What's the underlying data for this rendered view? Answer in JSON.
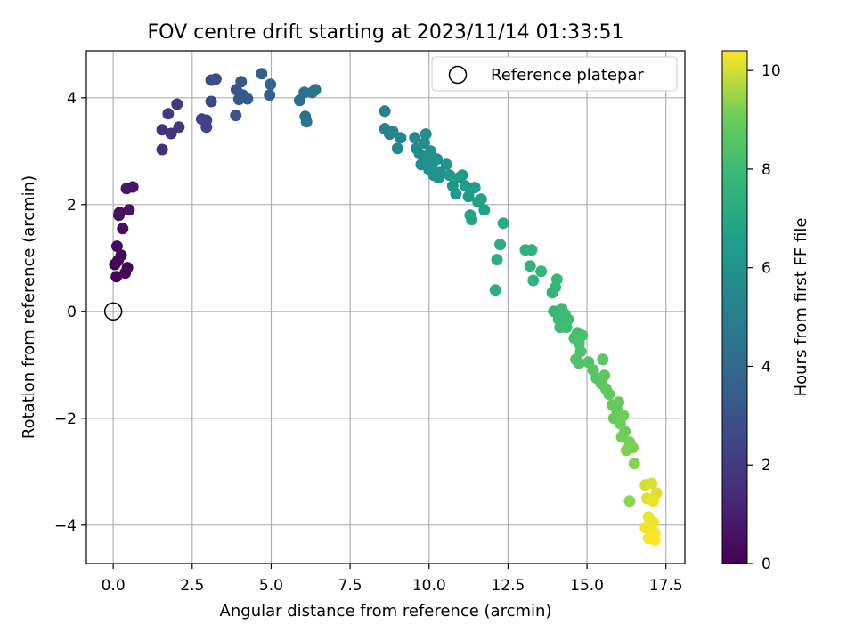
{
  "chart_data": {
    "type": "scatter",
    "title": "FOV centre drift starting at 2023/11/14 01:33:51",
    "xlabel": "Angular distance from reference (arcmin)",
    "ylabel": "Rotation from reference (arcmin)",
    "xlim": [
      -0.85,
      18.1
    ],
    "ylim": [
      -4.72,
      4.88
    ],
    "xticks": [
      0.0,
      2.5,
      5.0,
      7.5,
      10.0,
      12.5,
      15.0,
      17.5
    ],
    "xtick_labels": [
      "0.0",
      "2.5",
      "5.0",
      "7.5",
      "10.0",
      "12.5",
      "15.0",
      "17.5"
    ],
    "yticks": [
      -4,
      -2,
      0,
      2,
      4
    ],
    "ytick_labels": [
      "−4",
      "−2",
      "0",
      "2",
      "4"
    ],
    "grid": true,
    "legend": {
      "placement": "upper right",
      "entries": [
        {
          "label": "Reference platepar",
          "marker": "open-circle",
          "x": 0,
          "y": 0
        }
      ]
    },
    "colorbar": {
      "label": "Hours from first FF file",
      "colormap": "viridis",
      "range": [
        0,
        10.4
      ],
      "ticks": [
        0,
        2,
        4,
        6,
        8,
        10
      ],
      "tick_labels": [
        "0",
        "2",
        "4",
        "6",
        "8",
        "10"
      ]
    },
    "reference_point": {
      "x": 0,
      "y": 0
    },
    "point_series_note": "c = hours from first FF file",
    "points": [
      {
        "x": 0.05,
        "y": 0.88,
        "c": 0.05
      },
      {
        "x": 0.1,
        "y": 0.65,
        "c": 0.1
      },
      {
        "x": 0.38,
        "y": 0.72,
        "c": 0.15
      },
      {
        "x": 0.45,
        "y": 0.82,
        "c": 0.2
      },
      {
        "x": 0.15,
        "y": 0.95,
        "c": 0.25
      },
      {
        "x": 0.25,
        "y": 1.05,
        "c": 0.3
      },
      {
        "x": 0.12,
        "y": 1.22,
        "c": 0.35
      },
      {
        "x": 0.3,
        "y": 1.55,
        "c": 0.45
      },
      {
        "x": 0.18,
        "y": 1.8,
        "c": 0.5
      },
      {
        "x": 0.2,
        "y": 1.85,
        "c": 0.55
      },
      {
        "x": 0.5,
        "y": 1.9,
        "c": 0.6
      },
      {
        "x": 0.42,
        "y": 2.3,
        "c": 0.7
      },
      {
        "x": 0.62,
        "y": 2.33,
        "c": 0.75
      },
      {
        "x": 1.55,
        "y": 3.03,
        "c": 1.6
      },
      {
        "x": 1.55,
        "y": 3.4,
        "c": 1.65
      },
      {
        "x": 1.83,
        "y": 3.33,
        "c": 1.75
      },
      {
        "x": 2.08,
        "y": 3.45,
        "c": 1.85
      },
      {
        "x": 1.74,
        "y": 3.7,
        "c": 1.9
      },
      {
        "x": 2.02,
        "y": 3.88,
        "c": 2.0
      },
      {
        "x": 2.8,
        "y": 3.6,
        "c": 2.3
      },
      {
        "x": 2.95,
        "y": 3.45,
        "c": 2.35
      },
      {
        "x": 2.95,
        "y": 3.58,
        "c": 2.4
      },
      {
        "x": 3.1,
        "y": 3.93,
        "c": 2.55
      },
      {
        "x": 3.1,
        "y": 4.33,
        "c": 2.65
      },
      {
        "x": 3.25,
        "y": 4.35,
        "c": 2.75
      },
      {
        "x": 3.88,
        "y": 3.67,
        "c": 3.0
      },
      {
        "x": 3.9,
        "y": 4.15,
        "c": 3.05
      },
      {
        "x": 3.98,
        "y": 3.97,
        "c": 3.1
      },
      {
        "x": 4.05,
        "y": 4.3,
        "c": 3.2
      },
      {
        "x": 4.1,
        "y": 4.05,
        "c": 3.25
      },
      {
        "x": 4.25,
        "y": 3.98,
        "c": 3.3
      },
      {
        "x": 4.7,
        "y": 4.45,
        "c": 3.6
      },
      {
        "x": 4.95,
        "y": 4.05,
        "c": 3.7
      },
      {
        "x": 4.98,
        "y": 4.25,
        "c": 3.8
      },
      {
        "x": 5.9,
        "y": 3.95,
        "c": 4.2
      },
      {
        "x": 6.05,
        "y": 4.1,
        "c": 4.3
      },
      {
        "x": 6.08,
        "y": 3.65,
        "c": 4.35
      },
      {
        "x": 6.12,
        "y": 3.55,
        "c": 4.4
      },
      {
        "x": 6.3,
        "y": 4.1,
        "c": 4.45
      },
      {
        "x": 6.4,
        "y": 4.15,
        "c": 4.5
      },
      {
        "x": 8.6,
        "y": 3.75,
        "c": 5.1
      },
      {
        "x": 8.6,
        "y": 3.42,
        "c": 5.2
      },
      {
        "x": 8.75,
        "y": 3.32,
        "c": 5.25
      },
      {
        "x": 8.85,
        "y": 3.37,
        "c": 5.3
      },
      {
        "x": 9.0,
        "y": 3.05,
        "c": 5.4
      },
      {
        "x": 9.1,
        "y": 3.25,
        "c": 5.45
      },
      {
        "x": 9.55,
        "y": 3.25,
        "c": 5.6
      },
      {
        "x": 9.6,
        "y": 3.05,
        "c": 5.65
      },
      {
        "x": 9.7,
        "y": 2.95,
        "c": 5.7
      },
      {
        "x": 9.85,
        "y": 3.15,
        "c": 5.75
      },
      {
        "x": 9.9,
        "y": 3.32,
        "c": 5.8
      },
      {
        "x": 9.75,
        "y": 2.75,
        "c": 5.8
      },
      {
        "x": 9.95,
        "y": 2.85,
        "c": 5.85
      },
      {
        "x": 10.0,
        "y": 2.65,
        "c": 5.9
      },
      {
        "x": 10.05,
        "y": 3.0,
        "c": 5.9
      },
      {
        "x": 10.1,
        "y": 2.75,
        "c": 5.95
      },
      {
        "x": 10.15,
        "y": 2.55,
        "c": 6.0
      },
      {
        "x": 10.25,
        "y": 2.85,
        "c": 6.0
      },
      {
        "x": 10.35,
        "y": 2.6,
        "c": 6.05
      },
      {
        "x": 10.3,
        "y": 2.5,
        "c": 6.1
      },
      {
        "x": 10.55,
        "y": 2.75,
        "c": 6.15
      },
      {
        "x": 10.65,
        "y": 2.55,
        "c": 6.2
      },
      {
        "x": 10.75,
        "y": 2.35,
        "c": 6.25
      },
      {
        "x": 10.85,
        "y": 2.2,
        "c": 6.3
      },
      {
        "x": 10.95,
        "y": 2.5,
        "c": 6.35
      },
      {
        "x": 11.05,
        "y": 2.55,
        "c": 6.35
      },
      {
        "x": 11.15,
        "y": 2.35,
        "c": 6.4
      },
      {
        "x": 11.25,
        "y": 2.15,
        "c": 6.45
      },
      {
        "x": 11.3,
        "y": 2.28,
        "c": 6.5
      },
      {
        "x": 11.45,
        "y": 2.32,
        "c": 6.55
      },
      {
        "x": 11.55,
        "y": 2.05,
        "c": 6.6
      },
      {
        "x": 11.65,
        "y": 2.1,
        "c": 6.65
      },
      {
        "x": 11.75,
        "y": 1.9,
        "c": 6.7
      },
      {
        "x": 11.3,
        "y": 1.8,
        "c": 6.75
      },
      {
        "x": 11.35,
        "y": 1.72,
        "c": 6.8
      },
      {
        "x": 12.35,
        "y": 1.65,
        "c": 7.2
      },
      {
        "x": 12.25,
        "y": 1.25,
        "c": 7.25
      },
      {
        "x": 12.15,
        "y": 0.97,
        "c": 7.3
      },
      {
        "x": 12.1,
        "y": 0.4,
        "c": 7.35
      },
      {
        "x": 13.05,
        "y": 1.15,
        "c": 7.45
      },
      {
        "x": 13.25,
        "y": 1.15,
        "c": 7.5
      },
      {
        "x": 13.2,
        "y": 0.85,
        "c": 7.55
      },
      {
        "x": 13.3,
        "y": 0.58,
        "c": 7.6
      },
      {
        "x": 13.55,
        "y": 0.75,
        "c": 7.65
      },
      {
        "x": 13.9,
        "y": 0.35,
        "c": 7.7
      },
      {
        "x": 14.0,
        "y": 0.45,
        "c": 7.75
      },
      {
        "x": 14.05,
        "y": 0.6,
        "c": 7.8
      },
      {
        "x": 13.95,
        "y": 0.0,
        "c": 7.85
      },
      {
        "x": 14.1,
        "y": -0.15,
        "c": 7.9
      },
      {
        "x": 14.2,
        "y": 0.05,
        "c": 7.95
      },
      {
        "x": 14.3,
        "y": -0.05,
        "c": 8.0
      },
      {
        "x": 14.15,
        "y": -0.3,
        "c": 8.0
      },
      {
        "x": 14.4,
        "y": -0.15,
        "c": 8.05
      },
      {
        "x": 14.35,
        "y": -0.3,
        "c": 8.1
      },
      {
        "x": 14.6,
        "y": -0.5,
        "c": 8.15
      },
      {
        "x": 14.7,
        "y": -0.4,
        "c": 8.2
      },
      {
        "x": 14.85,
        "y": -0.45,
        "c": 8.25
      },
      {
        "x": 14.75,
        "y": -0.6,
        "c": 8.3
      },
      {
        "x": 14.8,
        "y": -0.75,
        "c": 8.35
      },
      {
        "x": 14.65,
        "y": -0.9,
        "c": 8.4
      },
      {
        "x": 14.75,
        "y": -0.97,
        "c": 8.45
      },
      {
        "x": 15.05,
        "y": -0.95,
        "c": 8.5
      },
      {
        "x": 15.2,
        "y": -1.1,
        "c": 8.55
      },
      {
        "x": 15.3,
        "y": -1.25,
        "c": 8.6
      },
      {
        "x": 15.45,
        "y": -1.35,
        "c": 8.65
      },
      {
        "x": 15.55,
        "y": -1.2,
        "c": 8.7
      },
      {
        "x": 15.5,
        "y": -0.9,
        "c": 8.7
      },
      {
        "x": 15.6,
        "y": -1.45,
        "c": 8.75
      },
      {
        "x": 15.7,
        "y": -1.55,
        "c": 8.8
      },
      {
        "x": 15.8,
        "y": -1.75,
        "c": 8.85
      },
      {
        "x": 15.95,
        "y": -1.85,
        "c": 8.9
      },
      {
        "x": 16.0,
        "y": -1.7,
        "c": 8.9
      },
      {
        "x": 15.85,
        "y": -2.0,
        "c": 8.95
      },
      {
        "x": 16.05,
        "y": -2.1,
        "c": 9.0
      },
      {
        "x": 16.15,
        "y": -1.95,
        "c": 9.0
      },
      {
        "x": 16.2,
        "y": -2.25,
        "c": 9.05
      },
      {
        "x": 16.1,
        "y": -2.35,
        "c": 9.1
      },
      {
        "x": 16.35,
        "y": -2.45,
        "c": 9.15
      },
      {
        "x": 16.45,
        "y": -2.55,
        "c": 9.2
      },
      {
        "x": 16.25,
        "y": -2.6,
        "c": 9.25
      },
      {
        "x": 16.5,
        "y": -2.85,
        "c": 9.3
      },
      {
        "x": 16.35,
        "y": -3.55,
        "c": 9.4
      },
      {
        "x": 16.85,
        "y": -3.25,
        "c": 10.0
      },
      {
        "x": 17.05,
        "y": -3.22,
        "c": 10.05
      },
      {
        "x": 17.2,
        "y": -3.4,
        "c": 10.1
      },
      {
        "x": 16.9,
        "y": -3.5,
        "c": 10.15
      },
      {
        "x": 17.1,
        "y": -3.55,
        "c": 10.2
      },
      {
        "x": 16.95,
        "y": -3.85,
        "c": 10.25
      },
      {
        "x": 17.1,
        "y": -3.95,
        "c": 10.25
      },
      {
        "x": 16.85,
        "y": -4.05,
        "c": 10.3
      },
      {
        "x": 17.0,
        "y": -4.1,
        "c": 10.3
      },
      {
        "x": 17.15,
        "y": -4.15,
        "c": 10.35
      },
      {
        "x": 16.95,
        "y": -4.25,
        "c": 10.35
      },
      {
        "x": 17.15,
        "y": -4.28,
        "c": 10.4
      }
    ]
  }
}
